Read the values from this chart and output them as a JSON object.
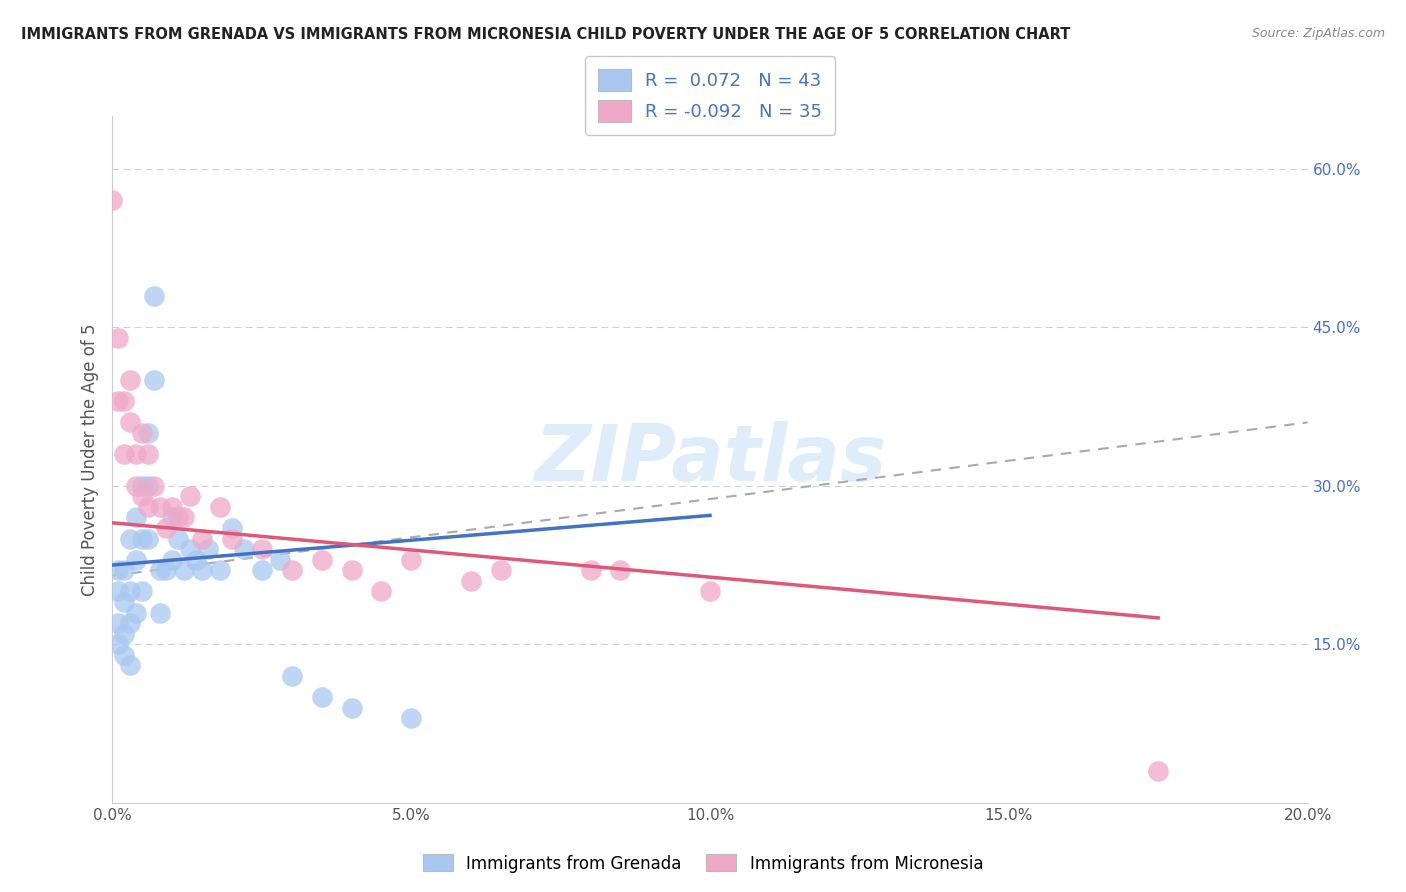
{
  "title": "IMMIGRANTS FROM GRENADA VS IMMIGRANTS FROM MICRONESIA CHILD POVERTY UNDER THE AGE OF 5 CORRELATION CHART",
  "source": "Source: ZipAtlas.com",
  "ylabel": "Child Poverty Under the Age of 5",
  "legend_label1": "Immigrants from Grenada",
  "legend_label2": "Immigrants from Micronesia",
  "r1": 0.072,
  "n1": 43,
  "r2": -0.092,
  "n2": 35,
  "color1": "#a8c8f0",
  "color2": "#f0a8c8",
  "line_color1": "#4472c4",
  "line_color2": "#e05878",
  "xlim": [
    0.0,
    0.2
  ],
  "ylim": [
    0.0,
    0.65
  ],
  "x_ticks": [
    0.0,
    0.05,
    0.1,
    0.15,
    0.2
  ],
  "x_tick_labels": [
    "0.0%",
    "5.0%",
    "10.0%",
    "15.0%",
    "20.0%"
  ],
  "y_ticks_right": [
    0.15,
    0.3,
    0.45,
    0.6
  ],
  "y_tick_labels_right": [
    "15.0%",
    "30.0%",
    "45.0%",
    "60.0%"
  ],
  "watermark": "ZIPatlas",
  "background_color": "#ffffff",
  "grenada_x": [
    0.001,
    0.001,
    0.001,
    0.001,
    0.002,
    0.002,
    0.002,
    0.002,
    0.003,
    0.003,
    0.003,
    0.003,
    0.004,
    0.004,
    0.004,
    0.005,
    0.005,
    0.005,
    0.006,
    0.006,
    0.006,
    0.007,
    0.007,
    0.008,
    0.008,
    0.009,
    0.01,
    0.01,
    0.011,
    0.012,
    0.013,
    0.014,
    0.015,
    0.016,
    0.018,
    0.02,
    0.022,
    0.025,
    0.028,
    0.03,
    0.035,
    0.04,
    0.05
  ],
  "grenada_y": [
    0.2,
    0.22,
    0.17,
    0.15,
    0.22,
    0.19,
    0.16,
    0.14,
    0.25,
    0.2,
    0.17,
    0.13,
    0.27,
    0.23,
    0.18,
    0.3,
    0.25,
    0.2,
    0.35,
    0.3,
    0.25,
    0.4,
    0.48,
    0.22,
    0.18,
    0.22,
    0.27,
    0.23,
    0.25,
    0.22,
    0.24,
    0.23,
    0.22,
    0.24,
    0.22,
    0.26,
    0.24,
    0.22,
    0.23,
    0.12,
    0.1,
    0.09,
    0.08
  ],
  "micronesia_x": [
    0.0,
    0.001,
    0.001,
    0.002,
    0.002,
    0.003,
    0.003,
    0.004,
    0.004,
    0.005,
    0.005,
    0.006,
    0.006,
    0.007,
    0.008,
    0.009,
    0.01,
    0.011,
    0.012,
    0.013,
    0.015,
    0.018,
    0.02,
    0.025,
    0.03,
    0.035,
    0.04,
    0.045,
    0.05,
    0.06,
    0.065,
    0.08,
    0.085,
    0.1,
    0.175
  ],
  "micronesia_y": [
    0.57,
    0.44,
    0.38,
    0.38,
    0.33,
    0.4,
    0.36,
    0.33,
    0.3,
    0.35,
    0.29,
    0.33,
    0.28,
    0.3,
    0.28,
    0.26,
    0.28,
    0.27,
    0.27,
    0.29,
    0.25,
    0.28,
    0.25,
    0.24,
    0.22,
    0.23,
    0.22,
    0.2,
    0.23,
    0.21,
    0.22,
    0.22,
    0.22,
    0.2,
    0.03
  ],
  "blue_line_x": [
    0.0,
    0.1
  ],
  "blue_line_y": [
    0.225,
    0.272
  ],
  "pink_line_x": [
    0.0,
    0.175
  ],
  "pink_line_y": [
    0.265,
    0.175
  ],
  "dash_line_x": [
    0.0,
    0.2
  ],
  "dash_line_y": [
    0.215,
    0.36
  ]
}
